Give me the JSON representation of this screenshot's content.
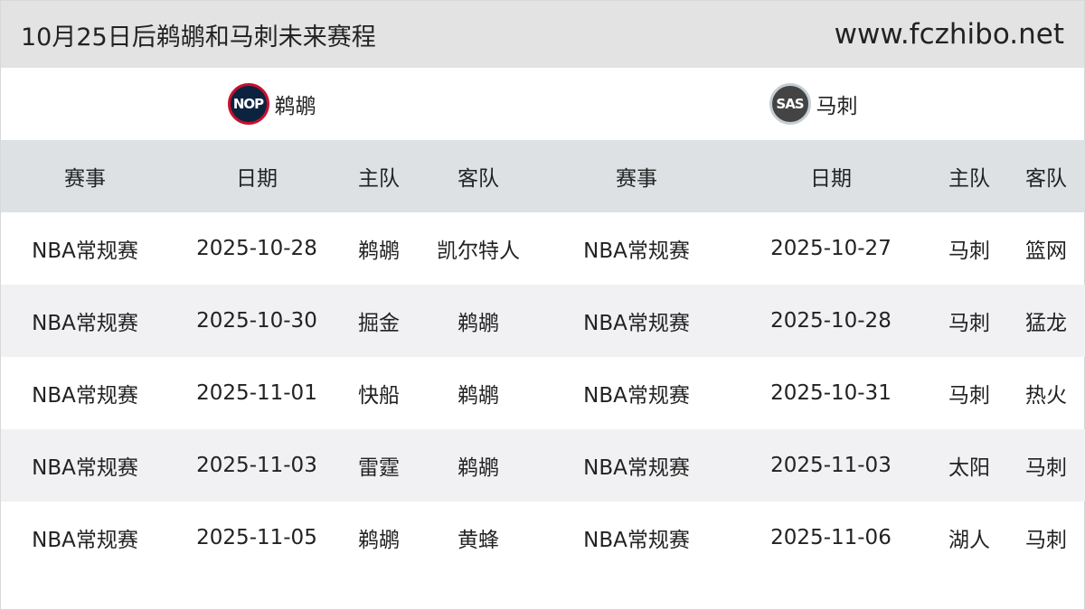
{
  "header": {
    "title": "10月25日后鹈鹕和马刺未来赛程",
    "site": "www.fczhibo.net"
  },
  "teams": [
    {
      "name": "鹈鹕",
      "logo_text": "NOP",
      "colors": [
        "#0c2340",
        "#c8102e"
      ]
    },
    {
      "name": "马刺",
      "logo_text": "SAS",
      "colors": [
        "#444444",
        "#c4ced4"
      ]
    }
  ],
  "columns": [
    "赛事",
    "日期",
    "主队",
    "客队",
    "赛事",
    "日期",
    "主队",
    "客队"
  ],
  "rows": [
    [
      "NBA常规赛",
      "2025-10-28",
      "鹈鹕",
      "凯尔特人",
      "NBA常规赛",
      "2025-10-27",
      "马刺",
      "篮网"
    ],
    [
      "NBA常规赛",
      "2025-10-30",
      "掘金",
      "鹈鹕",
      "NBA常规赛",
      "2025-10-28",
      "马刺",
      "猛龙"
    ],
    [
      "NBA常规赛",
      "2025-11-01",
      "快船",
      "鹈鹕",
      "NBA常规赛",
      "2025-10-31",
      "马刺",
      "热火"
    ],
    [
      "NBA常规赛",
      "2025-11-03",
      "雷霆",
      "鹈鹕",
      "NBA常规赛",
      "2025-11-03",
      "太阳",
      "马刺"
    ],
    [
      "NBA常规赛",
      "2025-11-05",
      "鹈鹕",
      "黄蜂",
      "NBA常规赛",
      "2025-11-06",
      "湖人",
      "马刺"
    ]
  ]
}
